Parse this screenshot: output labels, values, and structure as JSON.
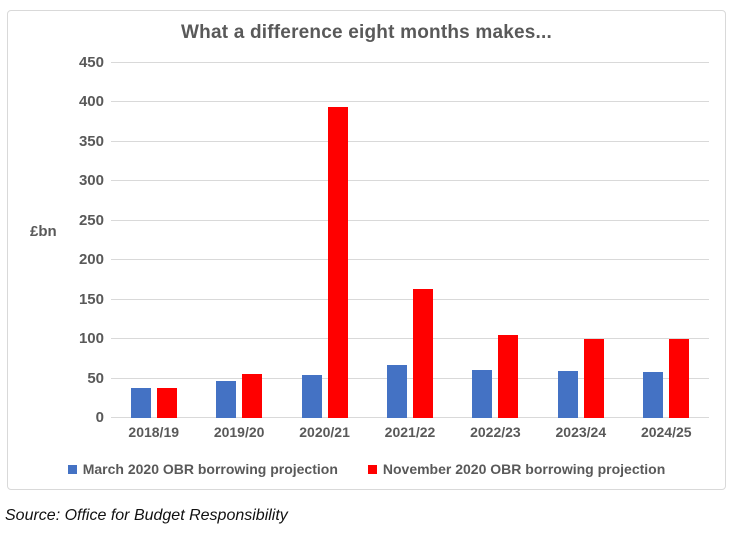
{
  "chart_data": {
    "type": "bar",
    "title": "What a difference eight months makes...",
    "ylabel": "£bn",
    "categories": [
      "2018/19",
      "2019/20",
      "2020/21",
      "2021/22",
      "2022/23",
      "2023/24",
      "2024/25"
    ],
    "series": [
      {
        "name": "March 2020 OBR borrowing projection",
        "color": "#4472C4",
        "values": [
          38,
          47,
          55,
          67,
          61,
          60,
          58
        ]
      },
      {
        "name": "November 2020 OBR borrowing projection",
        "color": "#FF0000",
        "values": [
          38,
          56,
          394,
          164,
          105,
          100,
          100
        ]
      }
    ],
    "ylim": [
      0,
      450
    ],
    "y_ticks": [
      0,
      50,
      100,
      150,
      200,
      250,
      300,
      350,
      400,
      450
    ],
    "grid": "horizontal",
    "legend_position": "bottom",
    "colors": {
      "axis_text": "#595959",
      "gridline": "#D9D9D9",
      "frame_border": "#D9D9D9",
      "background": "#FFFFFF"
    }
  },
  "source": "Source: Office for Budget Responsibility"
}
